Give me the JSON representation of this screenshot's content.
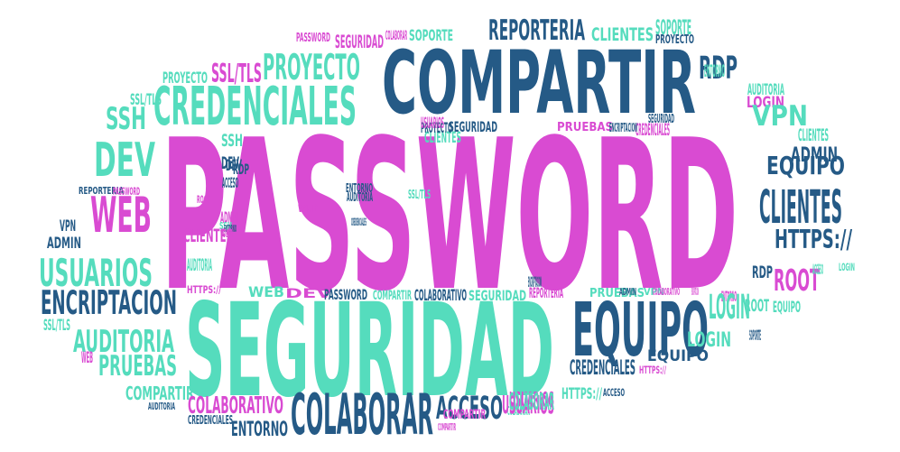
{
  "palette": {
    "magenta": "#d94bd2",
    "navy": "#255a86",
    "teal": "#55dcbd"
  },
  "words": [
    {
      "text": "PASSWORD",
      "color": "magenta"
    },
    {
      "text": "COMPARTIR",
      "color": "navy"
    },
    {
      "text": "SEGURIDAD",
      "color": "teal"
    },
    {
      "text": "CREDENCIALES",
      "color": "teal"
    },
    {
      "text": "EQUIPO",
      "color": "navy"
    },
    {
      "text": "COLABORAR",
      "color": "navy"
    },
    {
      "text": "REPORTERIA",
      "color": "navy"
    },
    {
      "text": "PROYECTO",
      "color": "teal"
    },
    {
      "text": "SSL/TLS",
      "color": "magenta"
    },
    {
      "text": "SSH",
      "color": "teal"
    },
    {
      "text": "DEV",
      "color": "teal"
    },
    {
      "text": "WEB",
      "color": "magenta"
    },
    {
      "text": "USUARIOS",
      "color": "teal"
    },
    {
      "text": "ENCRIPTACION",
      "color": "navy"
    },
    {
      "text": "AUDITORIA",
      "color": "teal"
    },
    {
      "text": "PRUEBAS",
      "color": "teal"
    },
    {
      "text": "COMPARTIR",
      "color": "teal"
    },
    {
      "text": "COLABORATIVO",
      "color": "magenta"
    },
    {
      "text": "ENTORNO",
      "color": "navy"
    },
    {
      "text": "CREDENCIALES",
      "color": "navy"
    },
    {
      "text": "AUDITORIA",
      "color": "navy"
    },
    {
      "text": "ACCESO",
      "color": "navy"
    },
    {
      "text": "USUARIOS",
      "color": "magenta"
    },
    {
      "text": "COLABORAR",
      "color": "teal"
    },
    {
      "text": "COMPARTIR",
      "color": "magenta"
    },
    {
      "text": "VPN",
      "color": "navy"
    },
    {
      "text": "ADMIN",
      "color": "navy"
    },
    {
      "text": "SSL/TLS",
      "color": "teal"
    },
    {
      "text": "WEB",
      "color": "magenta"
    },
    {
      "text": "REPORTERIA",
      "color": "navy"
    },
    {
      "text": "PASSWORD",
      "color": "magenta"
    },
    {
      "text": "PROYECTO",
      "color": "teal"
    },
    {
      "text": "SSL/TLS",
      "color": "teal"
    },
    {
      "text": "SSH",
      "color": "teal"
    },
    {
      "text": "DEV",
      "color": "navy"
    },
    {
      "text": "RDP",
      "color": "navy"
    },
    {
      "text": "ACCESO",
      "color": "navy"
    },
    {
      "text": "ROOT",
      "color": "magenta"
    },
    {
      "text": "ADMIN",
      "color": "magenta"
    },
    {
      "text": "DEV",
      "color": "navy"
    },
    {
      "text": "SSH",
      "color": "teal"
    },
    {
      "text": "ENTORNO",
      "color": "navy"
    },
    {
      "text": "WEB",
      "color": "magenta"
    },
    {
      "text": "CLIENTES",
      "color": "magenta"
    },
    {
      "text": "AUDITORIA",
      "color": "teal"
    },
    {
      "text": "HTTPS://",
      "color": "magenta"
    },
    {
      "text": "WEB",
      "color": "teal"
    },
    {
      "text": "DEV",
      "color": "magenta"
    },
    {
      "text": "PASSWORD",
      "color": "navy"
    },
    {
      "text": "COMPARTIR",
      "color": "teal"
    },
    {
      "text": "COLABORATIVO",
      "color": "navy"
    },
    {
      "text": "SEGURIDAD",
      "color": "teal"
    },
    {
      "text": "REPORTERIA",
      "color": "magenta"
    },
    {
      "text": "ENCRIPTACION",
      "color": "navy"
    },
    {
      "text": "PRUEBAS",
      "color": "teal"
    },
    {
      "text": "ADMIN",
      "color": "navy"
    },
    {
      "text": "VPN",
      "color": "teal"
    },
    {
      "text": "ENCRIPTACION",
      "color": "magenta"
    },
    {
      "text": "COLABORATIVO",
      "color": "magenta"
    },
    {
      "text": "ENTORNO",
      "color": "magenta"
    },
    {
      "text": "ROOT",
      "color": "teal"
    },
    {
      "text": "PASSWORD",
      "color": "magenta"
    },
    {
      "text": "SEGURIDAD",
      "color": "magenta"
    },
    {
      "text": "COLABORAR",
      "color": "magenta"
    },
    {
      "text": "SOPORTE",
      "color": "teal"
    },
    {
      "text": "CLIENTES",
      "color": "teal"
    },
    {
      "text": "PROYECTO",
      "color": "navy"
    },
    {
      "text": "SOPORTE",
      "color": "teal"
    },
    {
      "text": "RDP",
      "color": "navy"
    },
    {
      "text": "ENTORNO",
      "color": "teal"
    },
    {
      "text": "AUDITORIA",
      "color": "teal"
    },
    {
      "text": "LOGIN",
      "color": "magenta"
    },
    {
      "text": "VPN",
      "color": "teal"
    },
    {
      "text": "CLIENTES",
      "color": "teal"
    },
    {
      "text": "ADMIN",
      "color": "navy"
    },
    {
      "text": "EQUIPO",
      "color": "navy"
    },
    {
      "text": "CLIENTES",
      "color": "navy"
    },
    {
      "text": "HTTPS://",
      "color": "navy"
    },
    {
      "text": "RDP",
      "color": "navy"
    },
    {
      "text": "ROOT",
      "color": "magenta"
    },
    {
      "text": "ACCESO",
      "color": "teal"
    },
    {
      "text": "LOGIN",
      "color": "teal"
    },
    {
      "text": "LOGIN",
      "color": "teal"
    },
    {
      "text": "EQUIPO",
      "color": "teal"
    },
    {
      "text": "LOGIN",
      "color": "teal"
    },
    {
      "text": "SOPORTE",
      "color": "navy"
    },
    {
      "text": "CREDENCIALES",
      "color": "navy"
    },
    {
      "text": "EQUIPO",
      "color": "navy"
    },
    {
      "text": "HTTPS://",
      "color": "magenta"
    },
    {
      "text": "HTTPS://",
      "color": "teal"
    },
    {
      "text": "ACCESO",
      "color": "navy"
    },
    {
      "text": "USUARIOS",
      "color": "magenta"
    },
    {
      "text": "COLABORAR",
      "color": "teal"
    },
    {
      "text": "COMPARTIR",
      "color": "magenta"
    },
    {
      "text": "CREDENCIALES",
      "color": "navy"
    },
    {
      "text": "ENTORNO",
      "color": "navy"
    },
    {
      "text": "AUDITORIA",
      "color": "navy"
    },
    {
      "text": "WEB",
      "color": "magenta"
    },
    {
      "text": "SSL/TLS",
      "color": "teal"
    },
    {
      "text": "CLIENTES",
      "color": "teal"
    },
    {
      "text": "SEGURIDAD",
      "color": "navy"
    },
    {
      "text": "PROYECTO",
      "color": "navy"
    },
    {
      "text": "USUARIOS",
      "color": "magenta"
    },
    {
      "text": "PRUEBAS",
      "color": "magenta"
    },
    {
      "text": "CREDENCIALES",
      "color": "magenta"
    },
    {
      "text": "ENCRIPTACION",
      "color": "navy"
    },
    {
      "text": "SEGURIDAD",
      "color": "navy"
    },
    {
      "text": "PROYECTO",
      "color": "navy"
    },
    {
      "text": "USUARIOS",
      "color": "magenta"
    }
  ]
}
